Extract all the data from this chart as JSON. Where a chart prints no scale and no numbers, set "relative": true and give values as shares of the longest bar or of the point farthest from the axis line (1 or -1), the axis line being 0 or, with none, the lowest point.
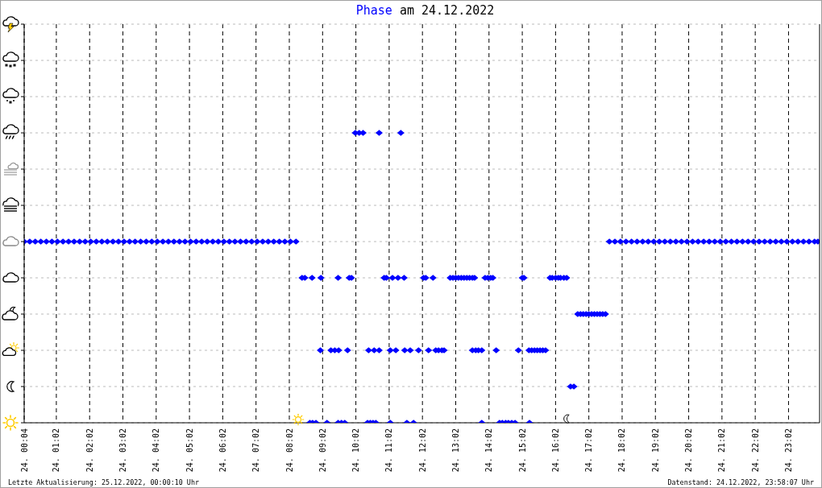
{
  "chart_data": {
    "type": "scatter",
    "title": "am 24.12.2022",
    "relative": true,
    "legend": "top",
    "grid": true,
    "marker": "diamond",
    "xlim": [
      "2022-12-24T00:04",
      "2022-12-24T23:58"
    ],
    "xticks": [
      {
        "value": "2022-12-24T00:04",
        "label": "24. 00:04"
      },
      {
        "value": "2022-12-24T01:02",
        "label": "24. 01:02"
      },
      {
        "value": "2022-12-24T02:02",
        "label": "24. 02:02"
      },
      {
        "value": "2022-12-24T03:02",
        "label": "24. 03:02"
      },
      {
        "value": "2022-12-24T04:02",
        "label": "24. 04:02"
      },
      {
        "value": "2022-12-24T05:02",
        "label": "24. 05:02"
      },
      {
        "value": "2022-12-24T06:02",
        "label": "24. 06:02"
      },
      {
        "value": "2022-12-24T07:02",
        "label": "24. 07:02"
      },
      {
        "value": "2022-12-24T08:02",
        "label": "24. 08:02"
      },
      {
        "value": "2022-12-24T09:02",
        "label": "24. 09:02"
      },
      {
        "value": "2022-12-24T10:02",
        "label": "24. 10:02"
      },
      {
        "value": "2022-12-24T11:02",
        "label": "24. 11:02"
      },
      {
        "value": "2022-12-24T12:02",
        "label": "24. 12:02"
      },
      {
        "value": "2022-12-24T13:02",
        "label": "24. 13:02"
      },
      {
        "value": "2022-12-24T14:02",
        "label": "24. 14:02"
      },
      {
        "value": "2022-12-24T15:02",
        "label": "24. 15:02"
      },
      {
        "value": "2022-12-24T16:02",
        "label": "24. 16:02"
      },
      {
        "value": "2022-12-24T17:02",
        "label": "24. 17:02"
      },
      {
        "value": "2022-12-24T18:02",
        "label": "24. 18:02"
      },
      {
        "value": "2022-12-24T19:02",
        "label": "24. 19:02"
      },
      {
        "value": "2022-12-24T20:02",
        "label": "24. 20:02"
      },
      {
        "value": "2022-12-24T21:02",
        "label": "24. 21:02"
      },
      {
        "value": "2022-12-24T22:02",
        "label": "24. 22:02"
      },
      {
        "value": "2022-12-24T23:02",
        "label": "24. 23:02"
      }
    ],
    "annotations": [
      "Letzte Aktualisierung: 25.12.2022, 00:00:10 Uhr",
      "Datenstand: 24.12.2022, 23:58:07 Uhr"
    ],
    "series": [
      {
        "name": "Phase",
        "color": "#0000ff",
        "x": [
          "2022-12-24T00:04",
          "2022-12-24T00:14",
          "2022-12-24T00:24",
          "2022-12-24T00:34",
          "2022-12-24T00:44",
          "2022-12-24T00:54",
          "2022-12-24T01:04",
          "2022-12-24T01:14",
          "2022-12-24T01:24",
          "2022-12-24T01:34",
          "2022-12-24T01:44",
          "2022-12-24T01:54",
          "2022-12-24T02:04",
          "2022-12-24T02:14",
          "2022-12-24T02:24",
          "2022-12-24T02:34",
          "2022-12-24T02:44",
          "2022-12-24T02:54",
          "2022-12-24T03:04",
          "2022-12-24T03:14",
          "2022-12-24T03:24",
          "2022-12-24T03:34",
          "2022-12-24T03:44",
          "2022-12-24T03:54",
          "2022-12-24T04:04",
          "2022-12-24T04:14",
          "2022-12-24T04:24",
          "2022-12-24T04:34",
          "2022-12-24T04:44",
          "2022-12-24T04:54",
          "2022-12-24T05:04",
          "2022-12-24T05:14",
          "2022-12-24T05:24",
          "2022-12-24T05:34",
          "2022-12-24T05:44",
          "2022-12-24T05:54",
          "2022-12-24T06:04",
          "2022-12-24T06:14",
          "2022-12-24T06:24",
          "2022-12-24T06:34",
          "2022-12-24T06:44",
          "2022-12-24T06:54",
          "2022-12-24T07:04",
          "2022-12-24T07:14",
          "2022-12-24T07:24",
          "2022-12-24T07:34",
          "2022-12-24T07:44",
          "2022-12-24T07:54",
          "2022-12-24T08:04",
          "2022-12-24T08:14",
          "2022-12-24T17:39",
          "2022-12-24T17:49",
          "2022-12-24T17:59",
          "2022-12-24T18:09",
          "2022-12-24T18:19",
          "2022-12-24T18:29",
          "2022-12-24T18:39",
          "2022-12-24T18:49",
          "2022-12-24T18:59",
          "2022-12-24T19:09",
          "2022-12-24T19:19",
          "2022-12-24T19:29",
          "2022-12-24T19:39",
          "2022-12-24T19:49",
          "2022-12-24T19:59",
          "2022-12-24T20:09",
          "2022-12-24T20:19",
          "2022-12-24T20:29",
          "2022-12-24T20:39",
          "2022-12-24T20:49",
          "2022-12-24T20:59",
          "2022-12-24T21:09",
          "2022-12-24T21:19",
          "2022-12-24T21:29",
          "2022-12-24T21:39",
          "2022-12-24T21:49",
          "2022-12-24T21:59",
          "2022-12-24T22:09",
          "2022-12-24T22:19",
          "2022-12-24T22:29",
          "2022-12-24T22:39",
          "2022-12-24T22:49",
          "2022-12-24T22:59",
          "2022-12-24T23:09",
          "2022-12-24T23:19",
          "2022-12-24T23:29",
          "2022-12-24T23:39",
          "2022-12-24T23:49",
          "2022-12-24T23:55",
          "2022-12-24T08:25",
          "2022-12-24T08:30",
          "2022-12-24T08:43",
          "2022-12-24T08:59",
          "2022-12-24T09:30",
          "2022-12-24T09:50",
          "2022-12-24T09:54",
          "2022-12-24T10:53",
          "2022-12-24T10:57",
          "2022-12-24T11:08",
          "2022-12-24T11:18",
          "2022-12-24T11:29",
          "2022-12-24T12:04",
          "2022-12-24T12:08",
          "2022-12-24T12:21",
          "2022-12-24T12:52",
          "2022-12-24T12:57",
          "2022-12-24T13:02",
          "2022-12-24T13:07",
          "2022-12-24T13:12",
          "2022-12-24T13:17",
          "2022-12-24T13:22",
          "2022-12-24T13:27",
          "2022-12-24T13:32",
          "2022-12-24T13:36",
          "2022-12-24T13:55",
          "2022-12-24T14:00",
          "2022-12-24T14:05",
          "2022-12-24T14:09",
          "2022-12-24T15:02",
          "2022-12-24T15:05",
          "2022-12-24T15:52",
          "2022-12-24T15:56",
          "2022-12-24T16:02",
          "2022-12-24T16:07",
          "2022-12-24T16:11",
          "2022-12-24T16:17",
          "2022-12-24T16:22",
          "2022-12-24T16:42",
          "2022-12-24T16:47",
          "2022-12-24T16:52",
          "2022-12-24T16:57",
          "2022-12-24T17:02",
          "2022-12-24T17:07",
          "2022-12-24T17:12",
          "2022-12-24T17:17",
          "2022-12-24T17:22",
          "2022-12-24T17:27",
          "2022-12-24T17:32",
          "2022-12-24T08:58",
          "2022-12-24T09:17",
          "2022-12-24T09:24",
          "2022-12-24T09:31",
          "2022-12-24T09:47",
          "2022-12-24T10:25",
          "2022-12-24T10:35",
          "2022-12-24T10:44",
          "2022-12-24T11:04",
          "2022-12-24T11:14",
          "2022-12-24T11:30",
          "2022-12-24T11:40",
          "2022-12-24T11:55",
          "2022-12-24T12:13",
          "2022-12-24T12:26",
          "2022-12-24T12:31",
          "2022-12-24T12:37",
          "2022-12-24T12:41",
          "2022-12-24T13:32",
          "2022-12-24T13:38",
          "2022-12-24T13:43",
          "2022-12-24T13:49",
          "2022-12-24T14:15",
          "2022-12-24T14:55",
          "2022-12-24T15:14",
          "2022-12-24T15:19",
          "2022-12-24T15:24",
          "2022-12-24T15:29",
          "2022-12-24T15:34",
          "2022-12-24T15:39",
          "2022-12-24T15:44",
          "2022-12-24T16:29",
          "2022-12-24T16:35",
          "2022-12-24T08:39",
          "2022-12-24T08:44",
          "2022-12-24T08:50",
          "2022-12-24T09:10",
          "2022-12-24T09:30",
          "2022-12-24T09:36",
          "2022-12-24T09:42",
          "2022-12-24T10:23",
          "2022-12-24T10:28",
          "2022-12-24T10:33",
          "2022-12-24T10:38",
          "2022-12-24T11:04",
          "2022-12-24T11:34",
          "2022-12-24T11:46",
          "2022-12-24T13:49",
          "2022-12-24T14:21",
          "2022-12-24T14:26",
          "2022-12-24T14:32",
          "2022-12-24T14:37",
          "2022-12-24T14:43",
          "2022-12-24T14:49",
          "2022-12-24T15:15",
          "2022-12-24T10:01",
          "2022-12-24T10:08",
          "2022-12-24T10:15",
          "2022-12-24T10:44",
          "2022-12-24T11:23"
        ],
        "values": [
          0.625,
          0.625,
          0.625,
          0.625,
          0.625,
          0.625,
          0.625,
          0.625,
          0.625,
          0.625,
          0.625,
          0.625,
          0.625,
          0.625,
          0.625,
          0.625,
          0.625,
          0.625,
          0.625,
          0.625,
          0.625,
          0.625,
          0.625,
          0.625,
          0.625,
          0.625,
          0.625,
          0.625,
          0.625,
          0.625,
          0.625,
          0.625,
          0.625,
          0.625,
          0.625,
          0.625,
          0.625,
          0.625,
          0.625,
          0.625,
          0.625,
          0.625,
          0.625,
          0.625,
          0.625,
          0.625,
          0.625,
          0.625,
          0.625,
          0.625,
          0.625,
          0.625,
          0.625,
          0.625,
          0.625,
          0.625,
          0.625,
          0.625,
          0.625,
          0.625,
          0.625,
          0.625,
          0.625,
          0.625,
          0.625,
          0.625,
          0.625,
          0.625,
          0.625,
          0.625,
          0.625,
          0.625,
          0.625,
          0.625,
          0.625,
          0.625,
          0.625,
          0.625,
          0.625,
          0.625,
          0.625,
          0.625,
          0.625,
          0.625,
          0.625,
          0.625,
          0.625,
          0.625,
          0.625,
          0.5,
          0.5,
          0.5,
          0.5,
          0.5,
          0.5,
          0.5,
          0.5,
          0.5,
          0.5,
          0.5,
          0.5,
          0.5,
          0.5,
          0.5,
          0.5,
          0.5,
          0.5,
          0.5,
          0.5,
          0.5,
          0.5,
          0.5,
          0.5,
          0.5,
          0.5,
          0.5,
          0.5,
          0.5,
          0.5,
          0.5,
          0.5,
          0.5,
          0.5,
          0.5,
          0.5,
          0.5,
          0.5,
          0.375,
          0.375,
          0.375,
          0.375,
          0.375,
          0.375,
          0.375,
          0.375,
          0.375,
          0.375,
          0.375,
          0.25,
          0.25,
          0.25,
          0.25,
          0.25,
          0.25,
          0.25,
          0.25,
          0.25,
          0.25,
          0.25,
          0.25,
          0.25,
          0.25,
          0.25,
          0.25,
          0.25,
          0.25,
          0.25,
          0.25,
          0.25,
          0.25,
          0.25,
          0.25,
          0.25,
          0.25,
          0.25,
          0.25,
          0.25,
          0.25,
          0.25,
          0.125,
          0.125,
          0,
          0,
          0,
          0,
          0,
          0,
          0,
          0,
          0,
          0,
          0,
          0,
          0,
          0,
          0,
          0,
          0,
          0,
          0,
          0,
          0,
          0,
          1,
          1,
          1,
          1,
          1
        ]
      }
    ]
  }
}
